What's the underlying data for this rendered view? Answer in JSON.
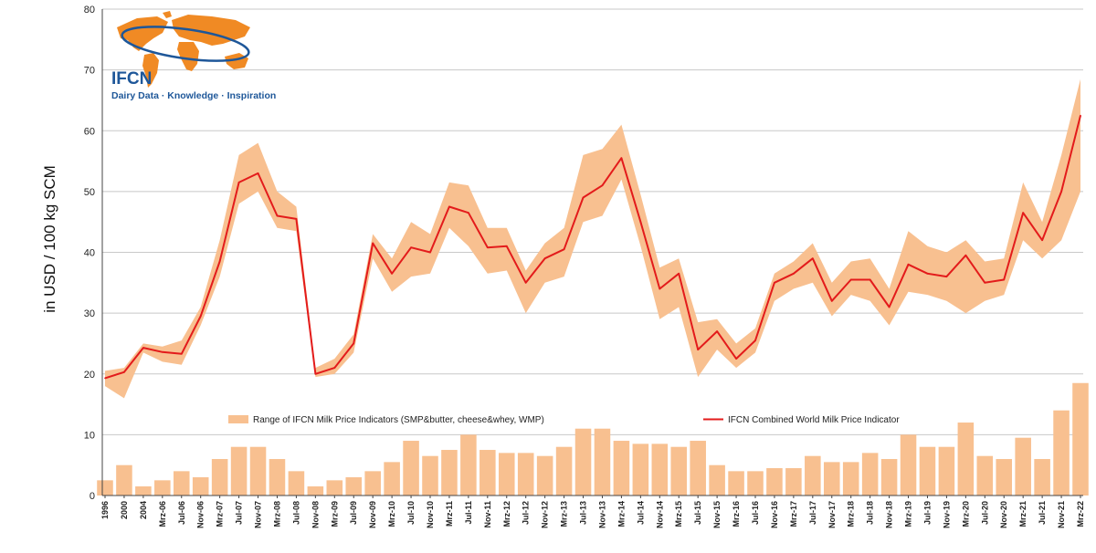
{
  "logo": {
    "brand": "IFCN",
    "tagline": "Dairy Data · Knowledge · Inspiration"
  },
  "colors": {
    "range_fill": "#f8c090",
    "line": "#e31b1b",
    "grid": "#c8c8c8",
    "logo_orange": "#f08a24",
    "logo_blue": "#1e5799"
  },
  "chart_data": {
    "type": "area",
    "title": "",
    "ylabel": "in USD / 100 kg SCM",
    "xlabel": "",
    "ylim": [
      0,
      80
    ],
    "yticks": [
      0,
      10,
      20,
      30,
      40,
      50,
      60,
      70,
      80
    ],
    "grid": true,
    "legend_placement": "bottom-center",
    "x_tick_labels": [
      "1996",
      "2000",
      "2004",
      "Mrz-06",
      "Jul-06",
      "Nov-06",
      "Mrz-07",
      "Jul-07",
      "Nov-07",
      "Mrz-08",
      "Jul-08",
      "Nov-08",
      "Mrz-09",
      "Jul-09",
      "Nov-09",
      "Mrz-10",
      "Jul-10",
      "Nov-10",
      "Mrz-11",
      "Jul-11",
      "Nov-11",
      "Mrz-12",
      "Jul-12",
      "Nov-12",
      "Mrz-13",
      "Jul-13",
      "Nov-13",
      "Mrz-14",
      "Jul-14",
      "Nov-14",
      "Mrz-15",
      "Jul-15",
      "Nov-15",
      "Mrz-16",
      "Jul-16",
      "Nov-16",
      "Mrz-17",
      "Jul-17",
      "Nov-17",
      "Mrz-18",
      "Jul-18",
      "Nov-18",
      "Mrz-19",
      "Jul-19",
      "Nov-19",
      "Mrz-20",
      "Jul-20",
      "Nov-20",
      "Mrz-21",
      "Jul-21",
      "Nov-21",
      "Mrz-22"
    ],
    "series": [
      {
        "name": "IFCN Combined World Milk Price Indicator",
        "type": "line",
        "x": [
          "1996",
          "2000",
          "2004",
          "Mrz-06",
          "Jul-06",
          "Nov-06",
          "Mrz-07",
          "Jul-07",
          "Nov-07",
          "Mrz-08",
          "Jul-08",
          "Nov-08",
          "Mrz-09",
          "Jul-09",
          "Nov-09",
          "Mrz-10",
          "Jul-10",
          "Nov-10",
          "Mrz-11",
          "Jul-11",
          "Nov-11",
          "Mrz-12",
          "Jul-12",
          "Nov-12",
          "Mrz-13",
          "Jul-13",
          "Nov-13",
          "Mrz-14",
          "Jul-14",
          "Nov-14",
          "Mrz-15",
          "Jul-15",
          "Nov-15",
          "Mrz-16",
          "Jul-16",
          "Nov-16",
          "Mrz-17",
          "Jul-17",
          "Nov-17",
          "Mrz-18",
          "Jul-18",
          "Nov-18",
          "Mrz-19",
          "Jul-19",
          "Nov-19",
          "Mrz-20",
          "Jul-20",
          "Nov-20",
          "Mrz-21",
          "Jul-21",
          "Nov-21",
          "Mrz-22"
        ],
        "values": [
          19.3,
          20.3,
          24.3,
          23.6,
          23.3,
          29.5,
          38.5,
          51.5,
          53.0,
          46.0,
          45.5,
          20.0,
          21.0,
          25.0,
          41.5,
          36.5,
          40.8,
          40.0,
          47.5,
          46.5,
          40.8,
          41.0,
          35.0,
          39.0,
          40.5,
          49.0,
          51.0,
          55.5,
          45.0,
          34.0,
          36.5,
          24.0,
          27.0,
          22.5,
          25.5,
          35.0,
          36.5,
          39.0,
          32.0,
          35.5,
          35.5,
          31.0,
          38.0,
          36.5,
          36.0,
          39.5,
          35.0,
          35.5,
          46.5,
          42.0,
          50.0,
          62.5
        ]
      },
      {
        "name": "Range of IFCN Milk Price Indicators (SMP&butter, cheese&whey, WMP)",
        "type": "range",
        "x": [
          "1996",
          "2000",
          "2004",
          "Mrz-06",
          "Jul-06",
          "Nov-06",
          "Mrz-07",
          "Jul-07",
          "Nov-07",
          "Mrz-08",
          "Jul-08",
          "Nov-08",
          "Mrz-09",
          "Jul-09",
          "Nov-09",
          "Mrz-10",
          "Jul-10",
          "Nov-10",
          "Mrz-11",
          "Jul-11",
          "Nov-11",
          "Mrz-12",
          "Jul-12",
          "Nov-12",
          "Mrz-13",
          "Jul-13",
          "Nov-13",
          "Mrz-14",
          "Jul-14",
          "Nov-14",
          "Mrz-15",
          "Jul-15",
          "Nov-15",
          "Mrz-16",
          "Jul-16",
          "Nov-16",
          "Mrz-17",
          "Jul-17",
          "Nov-17",
          "Mrz-18",
          "Jul-18",
          "Nov-18",
          "Mrz-19",
          "Jul-19",
          "Nov-19",
          "Mrz-20",
          "Jul-20",
          "Nov-20",
          "Mrz-21",
          "Jul-21",
          "Nov-21",
          "Mrz-22"
        ],
        "low": [
          18.0,
          16.0,
          23.5,
          22.0,
          21.5,
          28.0,
          36.0,
          48.0,
          50.0,
          44.0,
          43.5,
          19.5,
          20.0,
          23.5,
          39.0,
          33.5,
          36.0,
          36.5,
          44.0,
          41.0,
          36.5,
          37.0,
          30.0,
          35.0,
          36.0,
          45.0,
          46.0,
          52.0,
          41.0,
          29.0,
          31.0,
          19.5,
          24.0,
          21.0,
          23.5,
          32.0,
          34.0,
          35.0,
          29.5,
          33.0,
          32.0,
          28.0,
          33.5,
          33.0,
          32.0,
          30.0,
          32.0,
          33.0,
          42.0,
          39.0,
          42.0,
          50.0
        ],
        "high": [
          20.5,
          21.0,
          25.0,
          24.5,
          25.5,
          31.0,
          42.0,
          56.0,
          58.0,
          50.0,
          47.5,
          21.0,
          22.5,
          26.5,
          43.0,
          39.0,
          45.0,
          43.0,
          51.5,
          51.0,
          44.0,
          44.0,
          37.0,
          41.5,
          44.0,
          56.0,
          57.0,
          61.0,
          49.5,
          37.5,
          39.0,
          28.5,
          29.0,
          25.0,
          27.5,
          36.5,
          38.5,
          41.5,
          35.0,
          38.5,
          39.0,
          34.0,
          43.5,
          41.0,
          40.0,
          42.0,
          38.5,
          39.0,
          51.5,
          45.0,
          56.0,
          68.5
        ]
      },
      {
        "name": "Range width (spread between highest and lowest indicator)",
        "type": "bar",
        "x": [
          "1996",
          "2000",
          "2004",
          "Mrz-06",
          "Jul-06",
          "Nov-06",
          "Mrz-07",
          "Jul-07",
          "Nov-07",
          "Mrz-08",
          "Jul-08",
          "Nov-08",
          "Mrz-09",
          "Jul-09",
          "Nov-09",
          "Mrz-10",
          "Jul-10",
          "Nov-10",
          "Mrz-11",
          "Jul-11",
          "Nov-11",
          "Mrz-12",
          "Jul-12",
          "Nov-12",
          "Mrz-13",
          "Jul-13",
          "Nov-13",
          "Mrz-14",
          "Jul-14",
          "Nov-14",
          "Mrz-15",
          "Jul-15",
          "Nov-15",
          "Mrz-16",
          "Jul-16",
          "Nov-16",
          "Mrz-17",
          "Jul-17",
          "Nov-17",
          "Mrz-18",
          "Jul-18",
          "Nov-18",
          "Mrz-19",
          "Jul-19",
          "Nov-19",
          "Mrz-20",
          "Jul-20",
          "Nov-20",
          "Mrz-21",
          "Jul-21",
          "Nov-21",
          "Mrz-22"
        ],
        "values": [
          2.5,
          5.0,
          1.5,
          2.5,
          4.0,
          3.0,
          6.0,
          8.0,
          8.0,
          6.0,
          4.0,
          1.5,
          2.5,
          3.0,
          4.0,
          5.5,
          9.0,
          6.5,
          7.5,
          10.0,
          7.5,
          7.0,
          7.0,
          6.5,
          8.0,
          11.0,
          11.0,
          9.0,
          8.5,
          8.5,
          8.0,
          9.0,
          5.0,
          4.0,
          4.0,
          4.5,
          4.5,
          6.5,
          5.5,
          5.5,
          7.0,
          6.0,
          10.0,
          8.0,
          8.0,
          12.0,
          6.5,
          6.0,
          9.5,
          6.0,
          14.0,
          18.5
        ]
      }
    ]
  },
  "legend": {
    "range_label": "Range of IFCN Milk Price Indicators (SMP&butter, cheese&whey, WMP)",
    "line_label": "IFCN Combined World Milk Price Indicator"
  }
}
